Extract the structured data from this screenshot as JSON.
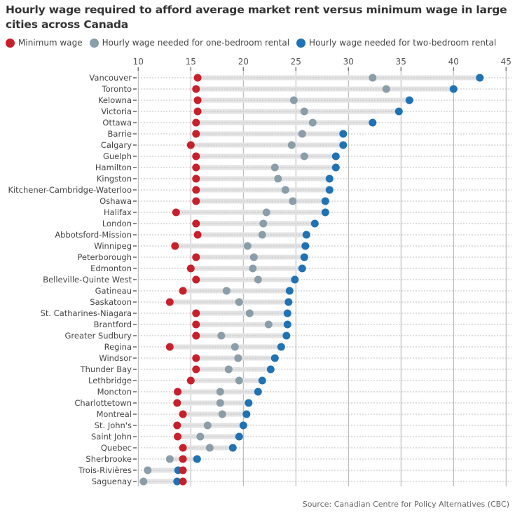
{
  "title": "Hourly wage required to afford average market rent versus minimum wage in large cities across Canada",
  "source": "Source: Canadian Centre for Policy Alternatives (CBC)",
  "colors": {
    "minimum": "#c8202b",
    "one_bedroom": "#8a9ea9",
    "two_bedroom": "#1f72b4",
    "range_bar": "#e3e3e3",
    "gridline": "#b0b0b0"
  },
  "chart_data": {
    "type": "dot-range",
    "title": "Hourly wage required to afford average market rent versus minimum wage in large cities across Canada",
    "xlabel": "",
    "ylabel": "",
    "xlim": [
      10,
      45
    ],
    "x_ticks": [
      10,
      15,
      20,
      25,
      30,
      35,
      40,
      45
    ],
    "grid": true,
    "legend_position": "top-left",
    "legend": [
      {
        "key": "minimum",
        "label": "Minimum wage"
      },
      {
        "key": "one_bedroom",
        "label": "Hourly wage needed for one-bedroom rental"
      },
      {
        "key": "two_bedroom",
        "label": "Hourly wage needed for two-bedroom rental"
      }
    ],
    "categories": [
      "Vancouver",
      "Toronto",
      "Kelowna",
      "Victoria",
      "Ottawa",
      "Barrie",
      "Calgary",
      "Guelph",
      "Hamilton",
      "Kingston",
      "Kitchener-Cambridge-Waterloo",
      "Oshawa",
      "Halifax",
      "London",
      "Abbotsford-Mission",
      "Winnipeg",
      "Peterborough",
      "Edmonton",
      "Belleville-Quinte West",
      "Gatineau",
      "Saskatoon",
      "St. Catharines-Niagara",
      "Brantford",
      "Greater Sudbury",
      "Regina",
      "Windsor",
      "Thunder Bay",
      "Lethbridge",
      "Moncton",
      "Charlottetown",
      "Montreal",
      "St. John's",
      "Saint John",
      "Quebec",
      "Sherbrooke",
      "Trois-Rivières",
      "Saguenay"
    ],
    "series": [
      {
        "name": "Minimum wage",
        "key": "minimum",
        "values": [
          15.65,
          15.5,
          15.65,
          15.65,
          15.5,
          15.5,
          15.0,
          15.5,
          15.5,
          15.5,
          15.5,
          15.5,
          13.6,
          15.5,
          15.65,
          13.5,
          15.5,
          15.0,
          15.5,
          14.25,
          13.0,
          15.5,
          15.5,
          15.5,
          13.0,
          15.5,
          15.5,
          15.0,
          13.75,
          13.7,
          14.25,
          13.7,
          13.75,
          14.25,
          14.25,
          14.25,
          14.25
        ]
      },
      {
        "name": "Hourly wage needed for one-bedroom rental",
        "key": "one_bedroom",
        "values": [
          32.3,
          33.6,
          24.8,
          25.8,
          26.6,
          25.6,
          24.6,
          25.8,
          23.0,
          23.3,
          24.0,
          24.7,
          22.2,
          21.9,
          21.8,
          20.4,
          21.0,
          20.9,
          21.4,
          18.4,
          19.6,
          20.6,
          22.4,
          17.9,
          19.2,
          19.5,
          18.6,
          19.6,
          17.8,
          17.8,
          18.0,
          16.6,
          15.9,
          16.8,
          13.0,
          10.9,
          10.5
        ]
      },
      {
        "name": "Hourly wage needed for two-bedroom rental",
        "key": "two_bedroom",
        "values": [
          42.5,
          40.0,
          35.8,
          34.8,
          32.3,
          29.5,
          29.5,
          28.8,
          28.8,
          28.2,
          28.2,
          27.8,
          27.8,
          26.8,
          26.0,
          25.9,
          25.8,
          25.6,
          24.9,
          24.4,
          24.3,
          24.2,
          24.2,
          24.1,
          23.6,
          23.0,
          22.6,
          21.8,
          21.4,
          20.5,
          20.3,
          20.0,
          19.6,
          19.0,
          15.6,
          13.8,
          13.7
        ]
      }
    ]
  }
}
